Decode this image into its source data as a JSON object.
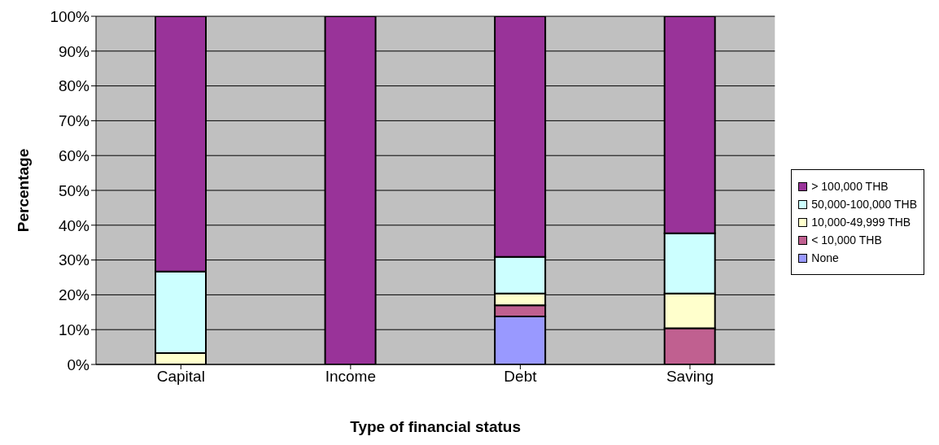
{
  "chart_data": {
    "type": "bar",
    "stacked": true,
    "xlabel": "Type of financial status",
    "ylabel": "Percentage",
    "categories": [
      "Capital",
      "Income",
      "Debt",
      "Saving"
    ],
    "series": [
      {
        "name": "None",
        "color": "#9999ff",
        "values": [
          0,
          0,
          13.8,
          0
        ]
      },
      {
        "name": "< 10,000 THB",
        "color": "#c06090",
        "values": [
          0,
          0,
          3.2,
          10.4
        ]
      },
      {
        "name": "10,000-49,999 THB",
        "color": "#ffffcc",
        "values": [
          3.3,
          0,
          3.4,
          10.0
        ]
      },
      {
        "name": "50,000-100,000 THB",
        "color": "#ccffff",
        "values": [
          23.4,
          0,
          10.5,
          17.3
        ]
      },
      {
        "name": "> 100,000 THB",
        "color": "#993399",
        "values": [
          73.3,
          100,
          69.1,
          62.3
        ]
      }
    ],
    "ylim": [
      0,
      100
    ],
    "yticks": [
      {
        "value": 0,
        "label": "0%"
      },
      {
        "value": 10,
        "label": "10%"
      },
      {
        "value": 20,
        "label": "20%"
      },
      {
        "value": 30,
        "label": "30%"
      },
      {
        "value": 40,
        "label": "40%"
      },
      {
        "value": 50,
        "label": "50%"
      },
      {
        "value": 60,
        "label": "60%"
      },
      {
        "value": 70,
        "label": "70%"
      },
      {
        "value": 80,
        "label": "80%"
      },
      {
        "value": 90,
        "label": "90%"
      },
      {
        "value": 100,
        "label": "100%"
      }
    ],
    "grid": "y",
    "legend": "right"
  }
}
